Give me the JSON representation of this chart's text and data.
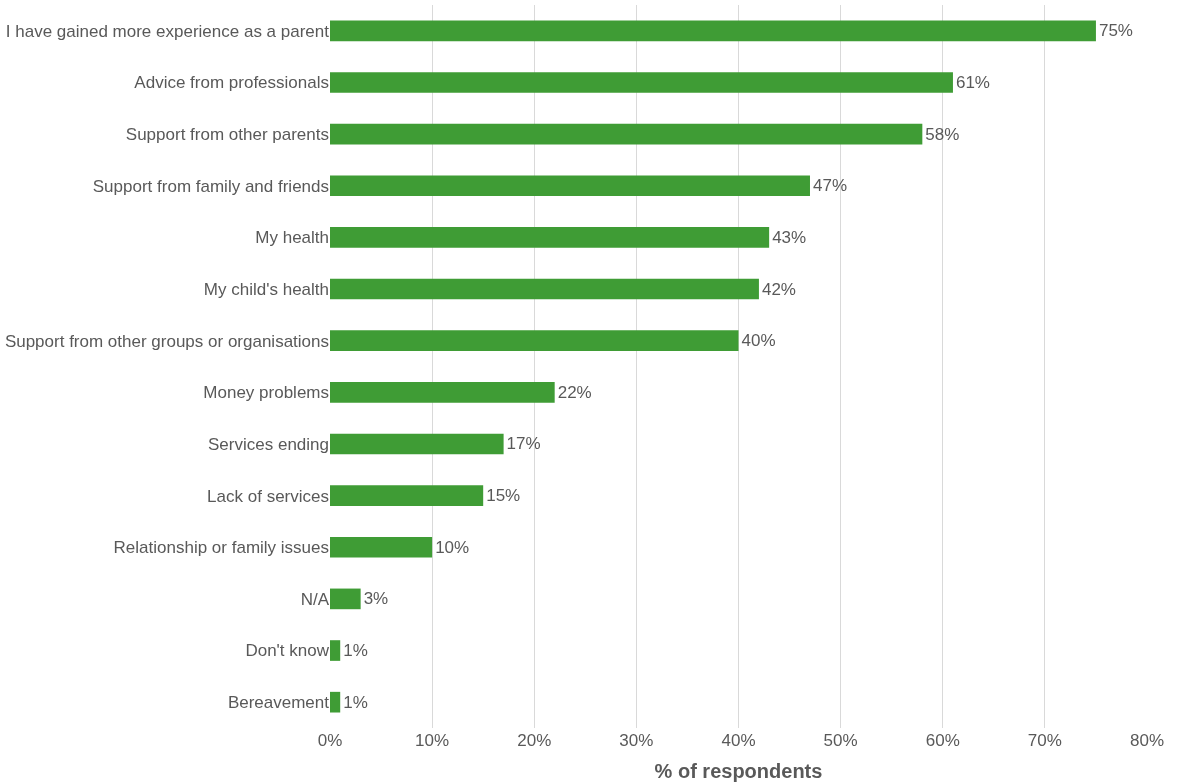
{
  "chart_data": {
    "type": "bar",
    "orientation": "horizontal",
    "xlabel": "% of respondents",
    "categories": [
      "I have gained more experience as a parent",
      "Advice from professionals",
      "Support from other parents",
      "Support from family and friends",
      "My health",
      "My child's health",
      "Support from other groups or organisations",
      "Money problems",
      "Services ending",
      "Lack of services",
      "Relationship or family issues",
      "N/A",
      "Don't know",
      "Bereavement"
    ],
    "values": [
      75,
      61,
      58,
      47,
      43,
      42,
      40,
      22,
      17,
      15,
      10,
      3,
      1,
      1
    ],
    "value_labels": [
      "75%",
      "61%",
      "58%",
      "47%",
      "43%",
      "42%",
      "40%",
      "22%",
      "17%",
      "15%",
      "10%",
      "3%",
      "1%",
      "1%"
    ],
    "color": "#3f9c35",
    "xlim": [
      0,
      80
    ],
    "xticks": [
      {
        "value": 0,
        "label": "0%"
      },
      {
        "value": 10,
        "label": "10%"
      },
      {
        "value": 20,
        "label": "20%"
      },
      {
        "value": 30,
        "label": "30%"
      },
      {
        "value": 40,
        "label": "40%"
      },
      {
        "value": 50,
        "label": "50%"
      },
      {
        "value": 60,
        "label": "60%"
      },
      {
        "value": 70,
        "label": "70%"
      },
      {
        "value": 80,
        "label": "80%"
      }
    ],
    "grid": "x"
  }
}
